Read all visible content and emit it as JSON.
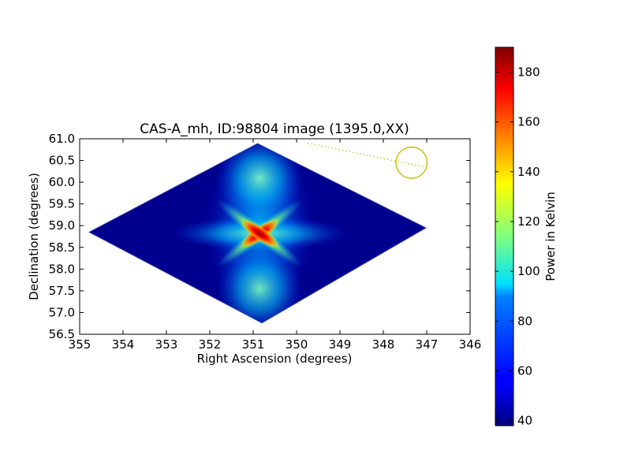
{
  "chart_data": {
    "type": "heatmap",
    "title": "CAS-A_mh, ID:98804 image (1395.0,XX)",
    "xlabel": "Right Ascension (degrees)",
    "ylabel": "Declination (degrees)",
    "xlim": [
      355,
      346
    ],
    "ylim": [
      56.5,
      61.0
    ],
    "xticks": [
      355,
      354,
      353,
      352,
      351,
      350,
      349,
      348,
      347,
      346
    ],
    "xtick_labels": [
      "355",
      "354",
      "353",
      "352",
      "351",
      "350",
      "349",
      "348",
      "347",
      "346"
    ],
    "yticks": [
      56.5,
      57.0,
      57.5,
      58.0,
      58.5,
      59.0,
      59.5,
      60.0,
      60.5,
      61.0
    ],
    "ytick_labels": [
      "56.5",
      "57.0",
      "57.5",
      "58.0",
      "58.5",
      "59.0",
      "59.5",
      "60.0",
      "60.5",
      "61.0"
    ],
    "colorbar": {
      "label": "Power in Kelvin",
      "range": [
        38,
        190
      ],
      "ticks": [
        40,
        60,
        80,
        100,
        120,
        140,
        160,
        180
      ],
      "tick_labels": [
        "40",
        "60",
        "80",
        "100",
        "120",
        "140",
        "160",
        "180"
      ],
      "colormap": "jet"
    },
    "map_footprint_corners_ra_dec": [
      [
        354.8,
        58.85
      ],
      [
        350.9,
        60.9
      ],
      [
        347.0,
        58.95
      ],
      [
        350.8,
        56.75
      ]
    ],
    "peak": {
      "ra": 350.85,
      "dec": 58.82,
      "value": 190
    },
    "min_value": 38,
    "beam_circle": {
      "ra": 347.35,
      "dec": 60.45,
      "radius_deg": 0.36,
      "color": "#bfbf00"
    },
    "guide_line": {
      "from": [
        349.75,
        60.9
      ],
      "to": [
        346.95,
        60.33
      ],
      "style": "dotted",
      "color": "#bfbf00"
    },
    "grid": false,
    "legend": "none"
  }
}
